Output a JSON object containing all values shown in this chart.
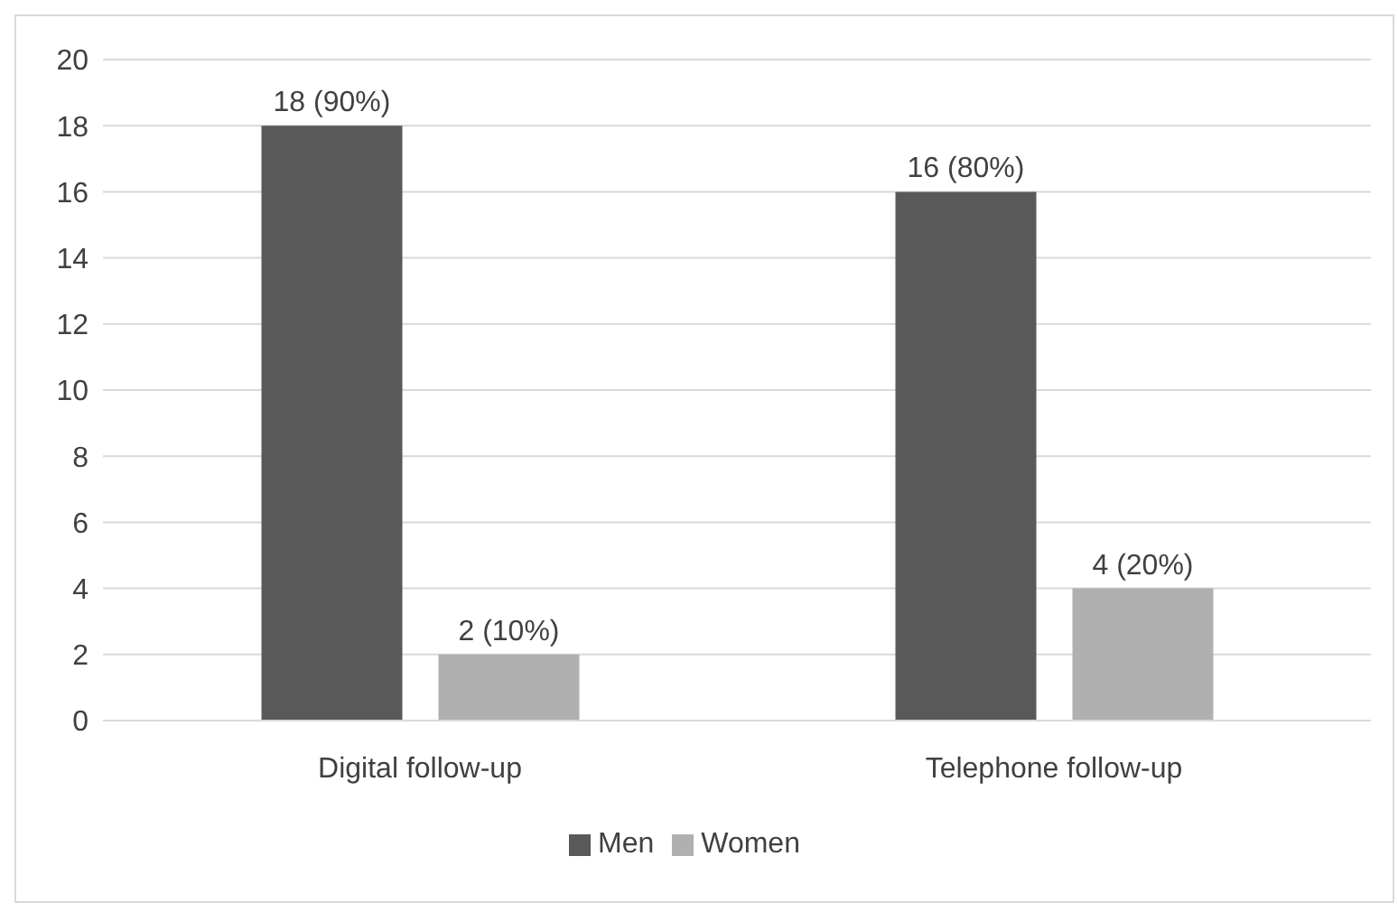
{
  "chart_data": {
    "type": "bar",
    "categories": [
      "Digital follow-up",
      "Telephone follow-up"
    ],
    "series": [
      {
        "name": "Men",
        "color": "#595959",
        "values": [
          18,
          16
        ],
        "value_labels": [
          "18 (90%)",
          "16 (80%)"
        ]
      },
      {
        "name": "Women",
        "color": "#b0b0b0",
        "values": [
          2,
          4
        ],
        "value_labels": [
          "2 (10%)",
          "4 (20%)"
        ]
      }
    ],
    "ylim": [
      0,
      20
    ],
    "yticks": [
      0,
      2,
      4,
      6,
      8,
      10,
      12,
      14,
      16,
      18,
      20
    ],
    "grid": "y",
    "legend": "bottom"
  }
}
